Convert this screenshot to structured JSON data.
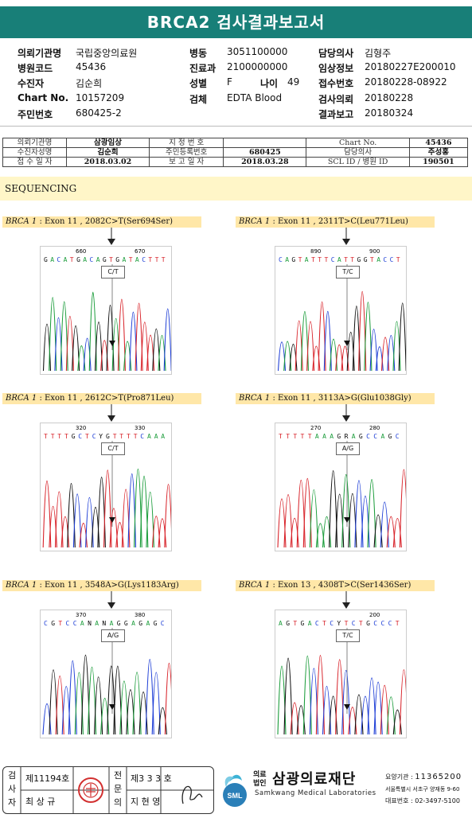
{
  "title": "BRCA2 검사결과보고서",
  "header": {
    "col1": [
      {
        "label": "의뢰기관명",
        "value": "국립중앙의료원"
      },
      {
        "label": "병원코드",
        "value": "45436"
      },
      {
        "label": "수진자",
        "value": "김순희"
      },
      {
        "label": "Chart No.",
        "value": "10157209"
      },
      {
        "label": "주민번호",
        "value": "680425-2"
      }
    ],
    "col2": [
      {
        "label": "병동",
        "value": "3051100000"
      },
      {
        "label": "진료과",
        "value": "2100000000"
      },
      {
        "label": "성별",
        "value": "F"
      },
      {
        "label": "검체",
        "value": "EDTA Blood"
      }
    ],
    "age": {
      "label": "나이",
      "value": "49"
    },
    "col3": [
      {
        "label": "담당의사",
        "value": "김형주"
      },
      {
        "label": "임상정보",
        "value": "20180227E200010"
      },
      {
        "label": "접수번호",
        "value": "20180228-08922"
      },
      {
        "label": "검사의뢰",
        "value": "20180228"
      },
      {
        "label": "결과보고",
        "value": "20180324"
      }
    ]
  },
  "summary": {
    "rows": [
      [
        "의뢰기관명",
        "삼광임상",
        "지 정 번 호",
        "",
        "Chart No.",
        "45436"
      ],
      [
        "수진자성명",
        "김순희",
        "주민등록번호",
        "680425",
        "담당의사",
        "주성홍"
      ],
      [
        "접 수 일 자",
        "2018.03.02",
        "보 고 일 자",
        "2018.03.28",
        "SCL ID / 병원 ID",
        "190501"
      ]
    ]
  },
  "section_title": "SEQUENCING",
  "variants": [
    {
      "gene": "BRCA 1",
      "desc": " : Exon 11 , 2082C>T(Ser694Ser)",
      "pos_left": "660",
      "pos_right": "670",
      "seq": "GACATGACAGTGATACTTT",
      "call": "C/T"
    },
    {
      "gene": "BRCA 1",
      "desc": " : Exon 11 , 2311T>C(Leu771Leu)",
      "pos_left": "890",
      "pos_right": "900",
      "seq": "CAGTATTTCATTGGTACCT",
      "call": "T/C"
    },
    {
      "gene": "BRCA 1",
      "desc": " : Exon 11 , 2612C>T(Pro871Leu)",
      "pos_left": "320",
      "pos_right": "330",
      "seq": "TTTTGCTCYGTTTTCAAA",
      "call": "C/T"
    },
    {
      "gene": "BRCA 1",
      "desc": " : Exon 11 , 3113A>G(Glu1038Gly)",
      "pos_left": "270",
      "pos_right": "280",
      "seq": "TTTTTAAAGRAGCCAGC",
      "call": "A/G"
    },
    {
      "gene": "BRCA 1",
      "desc": " : Exon 11 , 3548A>G(Lys1183Arg)",
      "pos_left": "370",
      "pos_right": "380",
      "seq": "CGTCCANANAGGAGAGC",
      "call": "A/G"
    },
    {
      "gene": "BRCA 1",
      "desc": " : Exon 13 , 4308T>C(Ser1436Ser)",
      "pos_left": "",
      "pos_right": "200",
      "seq": "AGTGACTCYTCTGCCCT",
      "call": "T/C"
    }
  ],
  "footer": {
    "inspector_label": "검사자",
    "inspector_no": "제11194호",
    "inspector_name": "최 상 규",
    "reviewer_label": "전문의",
    "reviewer_no": "제3 3 3 호",
    "reviewer_name": "지 현 영",
    "logo_text": "SML",
    "org_prefix_top": "의료",
    "org_prefix_bottom": "법인",
    "org_name": "삼광의료재단",
    "org_name_en": "Samkwang Medical Laboratories",
    "code_label": "요양기관 : ",
    "code": "11365200",
    "address": "서울특별시 서초구 양재동 9-60",
    "phone_label": "대표번호 : ",
    "phone": "02-3497-5100"
  },
  "colors": {
    "title_bg": "#187f78",
    "highlight": "#fff6c8",
    "label_bg": "#ffe7a8",
    "A": "#1a9c3a",
    "C": "#1f3fd6",
    "G": "#111111",
    "T": "#d8232a"
  }
}
